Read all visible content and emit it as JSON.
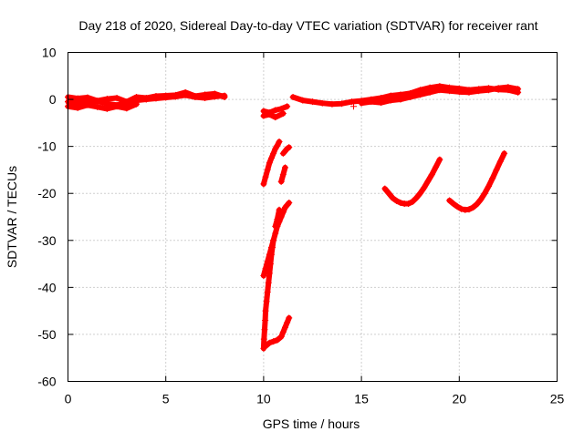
{
  "chart_data": {
    "type": "scatter",
    "title": "Day 218 of 2020, Sidereal Day-to-day VTEC variation (SDTVAR) for receiver rant",
    "xlabel": "GPS time / hours",
    "ylabel": "SDTVAR / TECUs",
    "xlim": [
      0,
      25
    ],
    "ylim": [
      -60,
      10
    ],
    "x_ticks": [
      0,
      5,
      10,
      15,
      20,
      25
    ],
    "y_ticks": [
      -60,
      -50,
      -40,
      -30,
      -20,
      -10,
      0,
      10
    ],
    "grid": true,
    "legend": "none",
    "marker": "plus",
    "color": "#ff0000",
    "segments": [
      {
        "x": [
          0.0,
          0.5,
          1.0,
          1.5,
          2.0,
          2.5,
          3.0,
          3.5,
          4.0,
          4.5,
          5.0,
          5.5,
          6.0,
          6.5,
          7.0,
          7.5,
          8.0
        ],
        "y": [
          -0.5,
          -0.8,
          -0.6,
          -0.4,
          -0.9,
          -1.2,
          -0.8,
          -0.2,
          0.0,
          0.2,
          0.4,
          0.6,
          0.9,
          0.5,
          0.3,
          0.6,
          0.8
        ]
      },
      {
        "x": [
          0.0,
          0.5,
          1.0,
          1.5,
          2.0,
          2.5,
          3.0,
          3.5,
          4.0,
          4.5,
          5.0,
          5.5,
          6.0,
          6.5,
          7.0,
          7.5,
          8.0
        ],
        "y": [
          0.5,
          0.2,
          0.4,
          -0.3,
          0.1,
          0.3,
          -0.5,
          0.5,
          0.3,
          0.7,
          0.8,
          0.9,
          1.5,
          0.7,
          1.0,
          1.2,
          0.5
        ]
      },
      {
        "x": [
          0.0,
          0.5,
          1.0,
          1.5,
          2.0,
          2.5,
          3.0,
          3.5
        ],
        "y": [
          -1.5,
          -1.8,
          -1.2,
          -1.6,
          -2.0,
          -1.5,
          -1.9,
          -1.0
        ]
      },
      {
        "x": [
          10.0,
          10.3,
          10.6,
          10.9,
          11.2
        ],
        "y": [
          -2.5,
          -2.8,
          -2.3,
          -2.0,
          -1.5
        ]
      },
      {
        "x": [
          10.0,
          10.3,
          10.6,
          11.0
        ],
        "y": [
          -3.5,
          -3.2,
          -3.8,
          -3.0
        ]
      },
      {
        "x": [
          11.5,
          12.0,
          12.5,
          13.0,
          13.5,
          14.0,
          14.5,
          15.0,
          15.5,
          16.0,
          16.5,
          17.0,
          17.5,
          18.0,
          18.5,
          19.0,
          19.5,
          20.0,
          20.5,
          21.0,
          21.5,
          22.0,
          22.5,
          23.0
        ],
        "y": [
          0.5,
          -0.2,
          -0.5,
          -0.8,
          -1.0,
          -0.9,
          -0.5,
          -0.3,
          0.0,
          0.3,
          0.8,
          1.0,
          1.3,
          2.0,
          2.5,
          2.8,
          2.5,
          2.3,
          2.0,
          2.2,
          2.4,
          2.1,
          2.0,
          1.5
        ]
      },
      {
        "x": [
          15.0,
          15.5,
          16.0,
          16.5,
          17.0,
          17.5,
          18.0,
          18.5,
          19.0,
          19.5,
          20.0,
          20.5,
          21.0,
          21.5,
          22.0,
          22.5,
          23.0
        ],
        "y": [
          -0.8,
          -0.5,
          -0.7,
          -0.2,
          0.0,
          0.5,
          1.0,
          1.5,
          2.0,
          1.8,
          1.6,
          1.5,
          1.8,
          2.0,
          2.4,
          2.6,
          2.2
        ]
      },
      {
        "x": [
          14.6
        ],
        "y": [
          -1.5
        ]
      },
      {
        "x": [
          10.0,
          10.1,
          10.2,
          10.3,
          10.4,
          10.5,
          10.6,
          10.7,
          10.8
        ],
        "y": [
          -18.0,
          -16.5,
          -15.0,
          -13.5,
          -12.5,
          -11.5,
          -10.5,
          -9.8,
          -9.0
        ]
      },
      {
        "x": [
          11.0,
          11.1,
          11.2,
          11.3
        ],
        "y": [
          -11.5,
          -11.0,
          -10.5,
          -10.2
        ]
      },
      {
        "x": [
          10.9,
          11.0,
          11.1
        ],
        "y": [
          -17.5,
          -16.0,
          -14.5
        ]
      },
      {
        "x": [
          10.0,
          10.1,
          10.2,
          10.3,
          10.4,
          10.5,
          10.6,
          10.7,
          10.8,
          10.9,
          11.0,
          11.1,
          11.2,
          11.3
        ],
        "y": [
          -37.5,
          -36.0,
          -34.5,
          -33.0,
          -31.5,
          -30.0,
          -28.5,
          -27.0,
          -26.0,
          -25.0,
          -24.0,
          -23.0,
          -22.5,
          -22.0
        ]
      },
      {
        "x": [
          10.6,
          10.7,
          10.8
        ],
        "y": [
          -27.0,
          -25.5,
          -23.5
        ]
      },
      {
        "x": [
          10.0,
          10.02,
          10.05,
          10.08,
          10.1,
          10.15,
          10.2,
          10.25,
          10.3,
          10.35,
          10.4,
          10.45,
          10.5
        ],
        "y": [
          -53.0,
          -51.0,
          -49.0,
          -47.0,
          -45.0,
          -43.0,
          -41.0,
          -39.0,
          -37.0,
          -35.0,
          -33.0,
          -31.5,
          -30.0
        ]
      },
      {
        "x": [
          10.1,
          10.3,
          10.5,
          10.7,
          10.9,
          11.0,
          11.1,
          11.2,
          11.3
        ],
        "y": [
          -52.5,
          -51.8,
          -51.5,
          -51.2,
          -50.5,
          -49.5,
          -48.5,
          -47.5,
          -46.5
        ]
      },
      {
        "x": [
          16.2,
          16.4,
          16.6,
          16.8,
          17.0,
          17.2,
          17.4,
          17.6,
          17.8,
          18.0,
          18.2,
          18.4,
          18.6,
          18.8,
          19.0
        ],
        "y": [
          -19.0,
          -20.0,
          -21.0,
          -21.6,
          -22.0,
          -22.2,
          -22.2,
          -21.8,
          -21.0,
          -20.0,
          -18.8,
          -17.4,
          -16.0,
          -14.4,
          -12.8
        ]
      },
      {
        "x": [
          19.5,
          19.7,
          19.9,
          20.1,
          20.3,
          20.5,
          20.7,
          20.9,
          21.1,
          21.3,
          21.5,
          21.7,
          21.9,
          22.1,
          22.3
        ],
        "y": [
          -21.5,
          -22.2,
          -22.8,
          -23.3,
          -23.5,
          -23.4,
          -23.0,
          -22.3,
          -21.3,
          -20.0,
          -18.5,
          -16.8,
          -15.0,
          -13.2,
          -11.5
        ]
      }
    ]
  }
}
